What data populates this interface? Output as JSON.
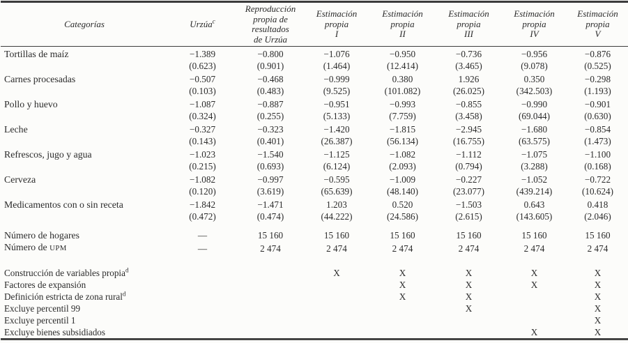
{
  "table": {
    "columns": [
      {
        "label": "Categorías"
      },
      {
        "label": "Urzúa",
        "sup": "c"
      },
      {
        "lines": [
          "Reproducción",
          "propia de",
          "resultados",
          "de Urzúa"
        ]
      },
      {
        "lines": [
          "Estimación",
          "propia",
          "I"
        ]
      },
      {
        "lines": [
          "Estimación",
          "propia",
          "II"
        ]
      },
      {
        "lines": [
          "Estimación",
          "propia",
          "III"
        ]
      },
      {
        "lines": [
          "Estimación",
          "propia",
          "IV"
        ]
      },
      {
        "lines": [
          "Estimación",
          "propia",
          "V"
        ]
      }
    ],
    "category_rows": [
      {
        "label": "Tortillas de maíz",
        "values": [
          "−1.389",
          "−0.800",
          "−1.076",
          "−0.950",
          "−0.736",
          "−0.956",
          "−0.876"
        ],
        "se": [
          "(0.623)",
          "(0.901)",
          "(1.464)",
          "(12.414)",
          "(3.465)",
          "(9.078)",
          "(0.525)"
        ]
      },
      {
        "label": "Carnes procesadas",
        "values": [
          "−0.507",
          "−0.468",
          "−0.999",
          "0.380",
          "1.926",
          "0.350",
          "−0.298"
        ],
        "se": [
          "(0.103)",
          "(0.483)",
          "(9.525)",
          "(101.082)",
          "(26.025)",
          "(342.503)",
          "(1.193)"
        ]
      },
      {
        "label": "Pollo y huevo",
        "values": [
          "−1.087",
          "−0.887",
          "−0.951",
          "−0.993",
          "−0.855",
          "−0.990",
          "−0.901"
        ],
        "se": [
          "(0.324)",
          "(0.255)",
          "(5.133)",
          "(7.759)",
          "(3.458)",
          "(69.044)",
          "(0.630)"
        ]
      },
      {
        "label": "Leche",
        "values": [
          "−0.327",
          "−0.323",
          "−1.420",
          "−1.815",
          "−2.945",
          "−1.680",
          "−0.854"
        ],
        "se": [
          "(0.143)",
          "(0.401)",
          "(26.387)",
          "(56.134)",
          "(16.755)",
          "(63.575)",
          "(1.473)"
        ]
      },
      {
        "label": "Refrescos, jugo y agua",
        "values": [
          "−1.023",
          "−1.540",
          "−1.125",
          "−1.082",
          "−1.112",
          "−1.075",
          "−1.100"
        ],
        "se": [
          "(0.215)",
          "(0.693)",
          "(6.124)",
          "(2.093)",
          "(0.794)",
          "(3.288)",
          "(0.168)"
        ]
      },
      {
        "label": "Cerveza",
        "values": [
          "−1.082",
          "−0.997",
          "−0.595",
          "−1.009",
          "−0.227",
          "−1.052",
          "−0.722"
        ],
        "se": [
          "(0.120)",
          "(3.619)",
          "(65.639)",
          "(48.140)",
          "(23.077)",
          "(439.214)",
          "(10.624)"
        ]
      },
      {
        "label": "Medicamentos con o sin receta",
        "values": [
          "−1.842",
          "−1.471",
          "1.203",
          "0.520",
          "−1.503",
          "0.643",
          "0.418"
        ],
        "se": [
          "(0.472)",
          "(0.474)",
          "(44.222)",
          "(24.586)",
          "(2.615)",
          "(143.605)",
          "(2.046)"
        ]
      }
    ],
    "count_rows": [
      {
        "label": "Número de hogares",
        "values": [
          "—",
          "15 160",
          "15 160",
          "15 160",
          "15 160",
          "15 160",
          "15 160"
        ]
      },
      {
        "label": "Número de ",
        "label_sc": "UPM",
        "values": [
          "—",
          "2 474",
          "2 474",
          "2 474",
          "2 474",
          "2 474",
          "2 474"
        ]
      }
    ],
    "check_rows": [
      {
        "label": "Construcción de variables propia",
        "sup": "d",
        "checks": [
          "",
          "",
          "X",
          "X",
          "X",
          "X",
          "X"
        ]
      },
      {
        "label": "Factores de expansión",
        "checks": [
          "",
          "",
          "",
          "X",
          "X",
          "X",
          "X"
        ]
      },
      {
        "label": "Definición estricta de zona rural",
        "sup": "d",
        "checks": [
          "",
          "",
          "",
          "X",
          "X",
          "",
          "X"
        ]
      },
      {
        "label": "Excluye percentil 99",
        "checks": [
          "",
          "",
          "",
          "",
          "X",
          "",
          "X"
        ]
      },
      {
        "label": "Excluye percentil 1",
        "checks": [
          "",
          "",
          "",
          "",
          "",
          "",
          "X"
        ]
      },
      {
        "label": "Excluye bienes subsidiados",
        "checks": [
          "",
          "",
          "",
          "",
          "",
          "X",
          "X"
        ]
      }
    ]
  }
}
